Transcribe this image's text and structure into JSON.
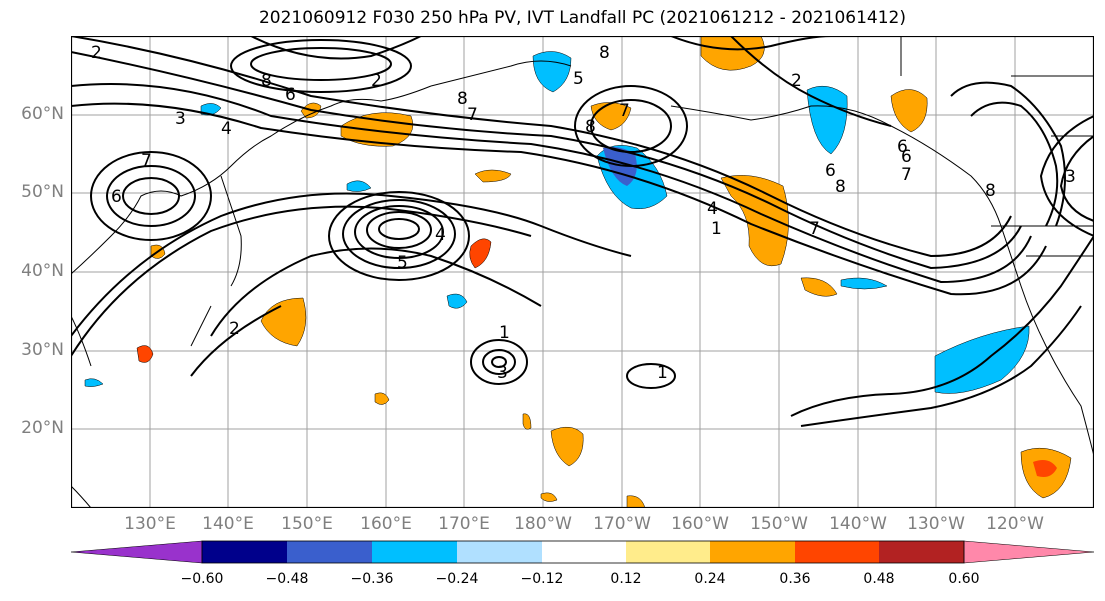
{
  "title": "2021060912 F030 250 hPa PV, IVT Landfall PC (2021061212 - 2021061412)",
  "map": {
    "projection": "plate-carree",
    "lon_range": [
      121,
      251
    ],
    "lat_range": [
      10,
      70
    ],
    "lat_labels": [
      "60°N",
      "50°N",
      "40°N",
      "30°N",
      "20°N"
    ],
    "lat_values": [
      60,
      50,
      40,
      30,
      20
    ],
    "lon_labels": [
      "130°E",
      "140°E",
      "150°E",
      "160°E",
      "170°E",
      "180°W",
      "170°W",
      "160°W",
      "150°W",
      "140°W",
      "130°W",
      "120°W"
    ],
    "lon_values": [
      130,
      140,
      150,
      160,
      170,
      180,
      190,
      200,
      210,
      220,
      230,
      240
    ],
    "gridlines": true,
    "contour_field": "250 hPa PV",
    "contour_labels": [
      "2",
      "8",
      "6",
      "4",
      "3",
      "7",
      "2",
      "8",
      "8",
      "7",
      "5",
      "8",
      "2",
      "6",
      "6",
      "8",
      "4",
      "5",
      "7",
      "6",
      "1",
      "6",
      "8",
      "3",
      "1",
      "3",
      "1",
      "7",
      "7",
      "4",
      "2"
    ],
    "shaded_field": "IVT Landfall PC"
  },
  "colorbar": {
    "ticks": [
      "−0.60",
      "−0.48",
      "−0.36",
      "−0.24",
      "−0.12",
      "0.12",
      "0.24",
      "0.36",
      "0.48",
      "0.60"
    ],
    "bounds": [
      -0.72,
      -0.6,
      -0.48,
      -0.36,
      -0.24,
      -0.12,
      0.12,
      0.24,
      0.36,
      0.48,
      0.6,
      0.72
    ],
    "colors": [
      "#9932cc",
      "#00008b",
      "#3a5fcd",
      "#00bfff",
      "#b0e0ff",
      "#ffffff",
      "#ffec8b",
      "#ffa500",
      "#ff4500",
      "#b22222",
      "#ff88aa"
    ],
    "extend": "both"
  }
}
